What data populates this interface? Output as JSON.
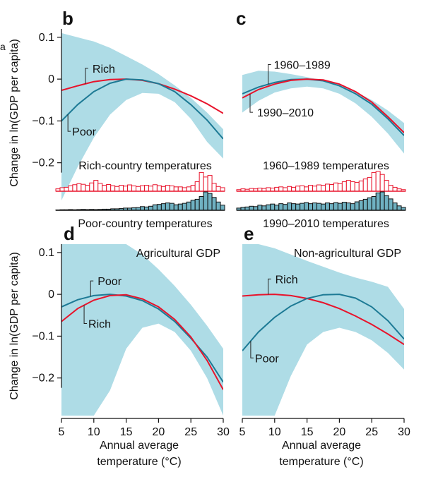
{
  "figure": {
    "corner_letter": "a",
    "ylabel": "Change in ln(GDP per capita)",
    "xlabel_line1": "Annual average",
    "xlabel_line2": "temperature (°C)",
    "colors": {
      "blue": "#1d7a95",
      "red": "#e8132b",
      "band": "#aedce6",
      "hist_blue": "#6fb1c1"
    }
  },
  "chart_data": [
    {
      "type": "line",
      "panel_letter": "b",
      "xlim": [
        5,
        30
      ],
      "ylim": [
        -0.29,
        0.12
      ],
      "yticks": [
        0.1,
        0,
        -0.1,
        -0.2
      ],
      "ytick_labels": [
        "0.1",
        "0",
        "−0.1",
        "−0.2"
      ],
      "series": [
        {
          "name": "Rich",
          "color": "red",
          "x": [
            5,
            7.5,
            10,
            12.5,
            15,
            17.5,
            20,
            22.5,
            25,
            27.5,
            30
          ],
          "y": [
            -0.027,
            -0.016,
            -0.006,
            -0.001,
            0,
            -0.003,
            -0.011,
            -0.024,
            -0.04,
            -0.059,
            -0.082
          ]
        },
        {
          "name": "Poor",
          "color": "blue",
          "x": [
            5,
            7.5,
            10,
            12.5,
            15,
            17.5,
            20,
            22.5,
            25,
            27.5,
            30
          ],
          "y": [
            -0.1,
            -0.061,
            -0.03,
            -0.01,
            0,
            -0.002,
            -0.011,
            -0.03,
            -0.061,
            -0.098,
            -0.143
          ]
        }
      ],
      "band": {
        "x": [
          5,
          7.5,
          10,
          12.5,
          15,
          17.5,
          20,
          22.5,
          25,
          27.5,
          30
        ],
        "upper": [
          0.11,
          0.1,
          0.09,
          0.075,
          0.055,
          0.035,
          0.012,
          -0.015,
          -0.045,
          -0.08,
          -0.12
        ],
        "lower": [
          -0.29,
          -0.21,
          -0.14,
          -0.085,
          -0.05,
          -0.033,
          -0.035,
          -0.055,
          -0.095,
          -0.15,
          -0.19
        ]
      },
      "labels": [
        {
          "text": "Rich",
          "series": "Rich",
          "anchor_x": 8.7
        },
        {
          "text": "Poor",
          "series": "Poor",
          "anchor_x": 6.0
        }
      ],
      "histograms": {
        "top_label": "Rich-country temperatures",
        "bottom_label": "Poor-country temperatures",
        "top_heights": [
          0.12,
          0.18,
          0.2,
          0.28,
          0.33,
          0.38,
          0.35,
          0.3,
          0.42,
          0.55,
          0.4,
          0.3,
          0.34,
          0.28,
          0.24,
          0.3,
          0.26,
          0.32,
          0.27,
          0.24,
          0.28,
          0.3,
          0.26,
          0.33,
          0.28,
          0.24,
          0.3,
          0.27,
          0.22,
          0.22,
          0.18,
          0.22,
          0.3,
          0.48,
          0.95,
          0.72,
          0.8,
          0.4,
          0.24,
          0.18
        ],
        "bottom_heights": [
          0.02,
          0.03,
          0.03,
          0.04,
          0.03,
          0.04,
          0.05,
          0.04,
          0.05,
          0.04,
          0.05,
          0.06,
          0.06,
          0.08,
          0.08,
          0.1,
          0.12,
          0.12,
          0.14,
          0.15,
          0.2,
          0.18,
          0.22,
          0.3,
          0.32,
          0.36,
          0.4,
          0.38,
          0.3,
          0.34,
          0.38,
          0.45,
          0.55,
          0.6,
          0.75,
          1.0,
          0.92,
          0.7,
          0.45,
          0.28
        ]
      }
    },
    {
      "type": "line",
      "panel_letter": "c",
      "xlim": [
        5,
        30
      ],
      "ylim": [
        -0.29,
        0.12
      ],
      "series": [
        {
          "name": "1960–1989",
          "color": "blue",
          "x": [
            5,
            7.5,
            10,
            12.5,
            15,
            17.5,
            20,
            22.5,
            25,
            27.5,
            30
          ],
          "y": [
            -0.035,
            -0.019,
            -0.008,
            -0.001,
            0,
            -0.004,
            -0.016,
            -0.035,
            -0.06,
            -0.095,
            -0.135
          ]
        },
        {
          "name": "1990–2010",
          "color": "red",
          "x": [
            5,
            7.5,
            10,
            12.5,
            15,
            17.5,
            20,
            22.5,
            25,
            27.5,
            30
          ],
          "y": [
            -0.045,
            -0.025,
            -0.012,
            -0.003,
            0,
            -0.002,
            -0.012,
            -0.03,
            -0.055,
            -0.09,
            -0.128
          ]
        }
      ],
      "band": {
        "x": [
          5,
          7.5,
          10,
          12.5,
          15,
          17.5,
          20,
          22.5,
          25,
          27.5,
          30
        ],
        "upper": [
          0.01,
          0.02,
          0.018,
          0.012,
          0.005,
          -0.003,
          -0.015,
          -0.03,
          -0.05,
          -0.075,
          -0.105
        ],
        "lower": [
          -0.08,
          -0.052,
          -0.032,
          -0.022,
          -0.018,
          -0.022,
          -0.035,
          -0.058,
          -0.09,
          -0.13,
          -0.178
        ]
      },
      "labels": [
        {
          "text": "1960–1989",
          "series": "1960–1989",
          "anchor_x": 9.0
        },
        {
          "text": "1990–2010",
          "series": "1990–2010",
          "anchor_x": 6.2
        }
      ],
      "histograms": {
        "top_label": "1960–1989 temperatures",
        "bottom_label": "1990–2010 temperatures",
        "top_heights": [
          0.08,
          0.12,
          0.1,
          0.14,
          0.12,
          0.16,
          0.14,
          0.18,
          0.16,
          0.2,
          0.22,
          0.18,
          0.24,
          0.2,
          0.26,
          0.28,
          0.22,
          0.3,
          0.26,
          0.32,
          0.3,
          0.36,
          0.34,
          0.42,
          0.38,
          0.48,
          0.55,
          0.48,
          0.45,
          0.52,
          0.62,
          0.7,
          0.95,
          1.0,
          0.85,
          0.55,
          0.3,
          0.2,
          0.12,
          0.08
        ],
        "bottom_heights": [
          0.12,
          0.16,
          0.18,
          0.22,
          0.2,
          0.28,
          0.24,
          0.3,
          0.34,
          0.28,
          0.36,
          0.32,
          0.4,
          0.36,
          0.34,
          0.38,
          0.42,
          0.36,
          0.4,
          0.38,
          0.34,
          0.4,
          0.36,
          0.42,
          0.38,
          0.44,
          0.4,
          0.36,
          0.46,
          0.52,
          0.6,
          0.68,
          0.75,
          0.95,
          1.0,
          0.8,
          0.62,
          0.4,
          0.24,
          0.16
        ]
      }
    },
    {
      "type": "line",
      "panel_letter": "d",
      "panel_title": "Agricultural GDP",
      "xlim": [
        5,
        30
      ],
      "ylim": [
        -0.29,
        0.12
      ],
      "xticks": [
        5,
        10,
        15,
        20,
        25,
        30
      ],
      "yticks": [
        0.1,
        0,
        -0.1,
        -0.2
      ],
      "ytick_labels": [
        "0.1",
        "0",
        "−0.1",
        "−0.2"
      ],
      "series": [
        {
          "name": "Poor",
          "color": "blue",
          "x": [
            5,
            7.5,
            10,
            12.5,
            15,
            17.5,
            20,
            22.5,
            25,
            27.5,
            30
          ],
          "y": [
            -0.03,
            -0.013,
            -0.003,
            0,
            -0.004,
            -0.015,
            -0.035,
            -0.065,
            -0.105,
            -0.15,
            -0.21
          ]
        },
        {
          "name": "Rich",
          "color": "red",
          "x": [
            5,
            7.5,
            10,
            12.5,
            15,
            17.5,
            20,
            22.5,
            25,
            27.5,
            30
          ],
          "y": [
            -0.065,
            -0.034,
            -0.014,
            -0.003,
            -0.001,
            -0.011,
            -0.03,
            -0.06,
            -0.102,
            -0.158,
            -0.228
          ]
        }
      ],
      "band": {
        "x": [
          5,
          7.5,
          10,
          12.5,
          15,
          17.5,
          20,
          22.5,
          25,
          27.5,
          30
        ],
        "upper": [
          0.12,
          0.12,
          0.12,
          0.12,
          0.12,
          0.095,
          0.06,
          0.02,
          -0.025,
          -0.075,
          -0.13
        ],
        "lower": [
          -0.29,
          -0.29,
          -0.29,
          -0.23,
          -0.13,
          -0.08,
          -0.07,
          -0.09,
          -0.135,
          -0.2,
          -0.29
        ]
      },
      "labels": [
        {
          "text": "Poor",
          "series": "Poor",
          "anchor_x": 9.5
        },
        {
          "text": "Rich",
          "series": "Rich",
          "anchor_x": 8.5
        }
      ]
    },
    {
      "type": "line",
      "panel_letter": "e",
      "panel_title": "Non-agricultural GDP",
      "xlim": [
        5,
        30
      ],
      "ylim": [
        -0.29,
        0.12
      ],
      "xticks": [
        5,
        10,
        15,
        20,
        25,
        30
      ],
      "series": [
        {
          "name": "Rich",
          "color": "red",
          "x": [
            5,
            7.5,
            10,
            12.5,
            15,
            17.5,
            20,
            22.5,
            25,
            27.5,
            30
          ],
          "y": [
            -0.004,
            -0.001,
            0,
            -0.003,
            -0.01,
            -0.02,
            -0.034,
            -0.052,
            -0.072,
            -0.095,
            -0.12
          ]
        },
        {
          "name": "Poor",
          "color": "blue",
          "x": [
            5,
            7.5,
            10,
            12.5,
            15,
            17.5,
            20,
            22.5,
            25,
            27.5,
            30
          ],
          "y": [
            -0.135,
            -0.09,
            -0.055,
            -0.028,
            -0.01,
            -0.001,
            0,
            -0.009,
            -0.03,
            -0.063,
            -0.107
          ]
        }
      ],
      "band": {
        "x": [
          5,
          7.5,
          10,
          12.5,
          15,
          17.5,
          20,
          22.5,
          25,
          27.5,
          30
        ],
        "upper": [
          0.12,
          0.12,
          0.11,
          0.095,
          0.08,
          0.066,
          0.052,
          0.04,
          0.03,
          0.018,
          -0.035
        ],
        "lower": [
          -0.29,
          -0.29,
          -0.29,
          -0.195,
          -0.12,
          -0.09,
          -0.08,
          -0.09,
          -0.11,
          -0.14,
          -0.18
        ]
      },
      "labels": [
        {
          "text": "Rich",
          "series": "Rich",
          "anchor_x": 9.0
        },
        {
          "text": "Poor",
          "series": "Poor",
          "anchor_x": 6.3
        }
      ]
    }
  ]
}
